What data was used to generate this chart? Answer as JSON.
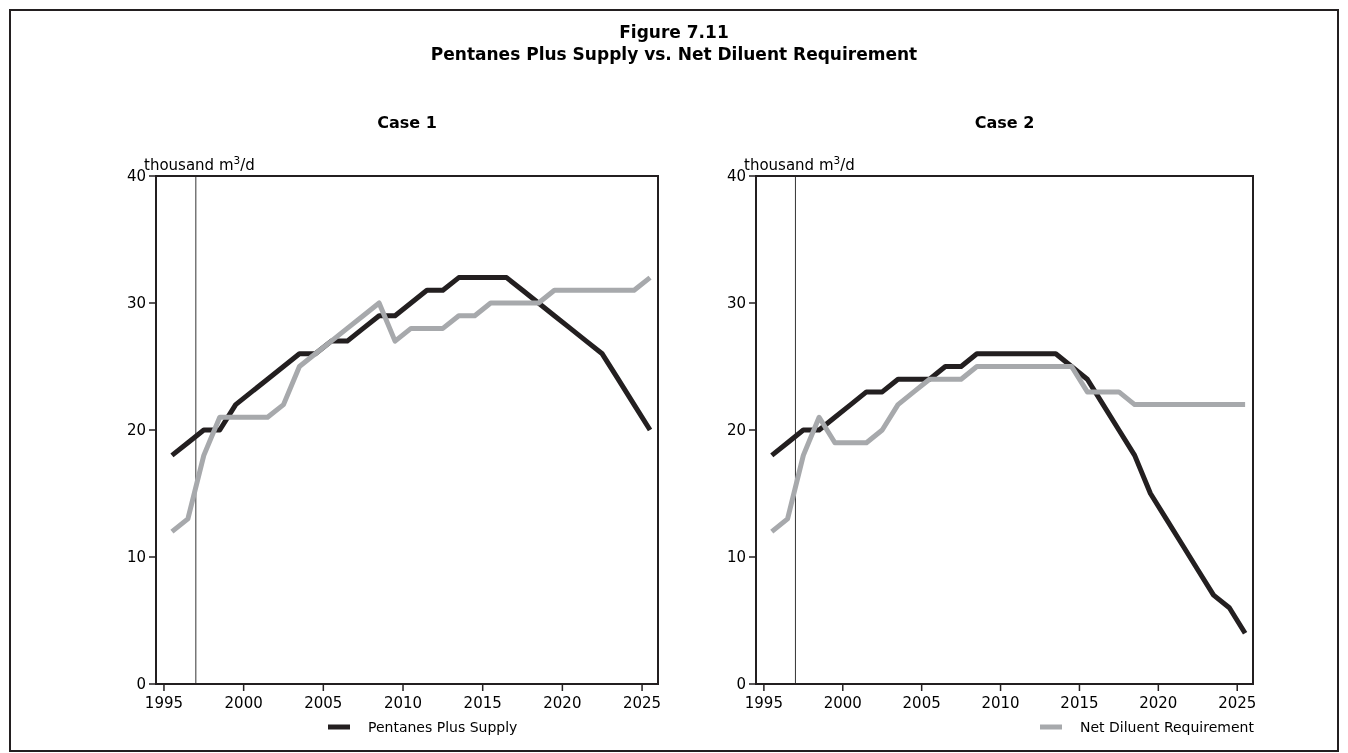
{
  "chart_data": [
    {
      "type": "line",
      "title": "Case 1",
      "annotations": [
        "Figure 7.11",
        "Pentanes Plus Supply vs. Net Diluent Requirement"
      ],
      "ylabel": "thousand m$^{3}$/d",
      "x": [
        1995.5,
        1996.5,
        1997.5,
        1998.5,
        1999.5,
        2000.5,
        2001.5,
        2002.5,
        2003.5,
        2004.5,
        2005.5,
        2006.5,
        2007.5,
        2008.5,
        2009.5,
        2010.5,
        2011.5,
        2012.5,
        2013.5,
        2014.5,
        2015.5,
        2016.5,
        2017.5,
        2018.5,
        2019.5,
        2020.5,
        2021.5,
        2022.5,
        2023.5,
        2024.5,
        2025.5
      ],
      "xlim": [
        1994.5,
        2026
      ],
      "xticks": [
        1995,
        2000,
        2005,
        2010,
        2015,
        2020,
        2025
      ],
      "ylim": [
        0,
        40
      ],
      "yticks": [
        0,
        10,
        20,
        30,
        40
      ],
      "grid": false,
      "legend": "bottom",
      "ref_lines": [
        {
          "axis": "x",
          "value": 1997,
          "color": "#000000"
        }
      ],
      "series": [
        {
          "name": "Pentanes Plus Supply",
          "color": "#231f20",
          "values": [
            18,
            19,
            20,
            20,
            22,
            23,
            24,
            25,
            26,
            26,
            27,
            27,
            28,
            29,
            29,
            30,
            31,
            31,
            32,
            32,
            32,
            32,
            31,
            30,
            29,
            28,
            27,
            26,
            24,
            22,
            20
          ]
        },
        {
          "name": "Net Diluent Requirement",
          "color": "#a7a9ac",
          "values": [
            12,
            13,
            18,
            21,
            21,
            21,
            21,
            22,
            25,
            26,
            27,
            28,
            29,
            30,
            27,
            28,
            28,
            28,
            29,
            29,
            30,
            30,
            30,
            30,
            31,
            31,
            31,
            31,
            31,
            31,
            32
          ]
        }
      ]
    },
    {
      "type": "line",
      "title": "Case 2",
      "ylabel": "thousand m$^{3}$/d",
      "x": [
        1995.5,
        1996.5,
        1997.5,
        1998.5,
        1999.5,
        2000.5,
        2001.5,
        2002.5,
        2003.5,
        2004.5,
        2005.5,
        2006.5,
        2007.5,
        2008.5,
        2009.5,
        2010.5,
        2011.5,
        2012.5,
        2013.5,
        2014.5,
        2015.5,
        2016.5,
        2017.5,
        2018.5,
        2019.5,
        2020.5,
        2021.5,
        2022.5,
        2023.5,
        2024.5,
        2025.5
      ],
      "xlim": [
        1994.5,
        2026
      ],
      "xticks": [
        1995,
        2000,
        2005,
        2010,
        2015,
        2020,
        2025
      ],
      "ylim": [
        0,
        40
      ],
      "yticks": [
        0,
        10,
        20,
        30,
        40
      ],
      "grid": false,
      "ref_lines": [
        {
          "axis": "x",
          "value": 1997,
          "color": "#000000"
        }
      ],
      "series": [
        {
          "color": "#231f20",
          "values": [
            18,
            19,
            20,
            20,
            21,
            22,
            23,
            23,
            24,
            24,
            24,
            25,
            25,
            26,
            26,
            26,
            26,
            26,
            26,
            25,
            24,
            22,
            20,
            18,
            15,
            13,
            11,
            9,
            7,
            6,
            4
          ]
        },
        {
          "color": "#a7a9ac",
          "values": [
            12,
            13,
            18,
            21,
            19,
            19,
            19,
            20,
            22,
            23,
            24,
            24,
            24,
            25,
            25,
            25,
            25,
            25,
            25,
            25,
            23,
            23,
            23,
            22,
            22,
            22,
            22,
            22,
            22,
            22,
            22
          ]
        }
      ]
    }
  ]
}
